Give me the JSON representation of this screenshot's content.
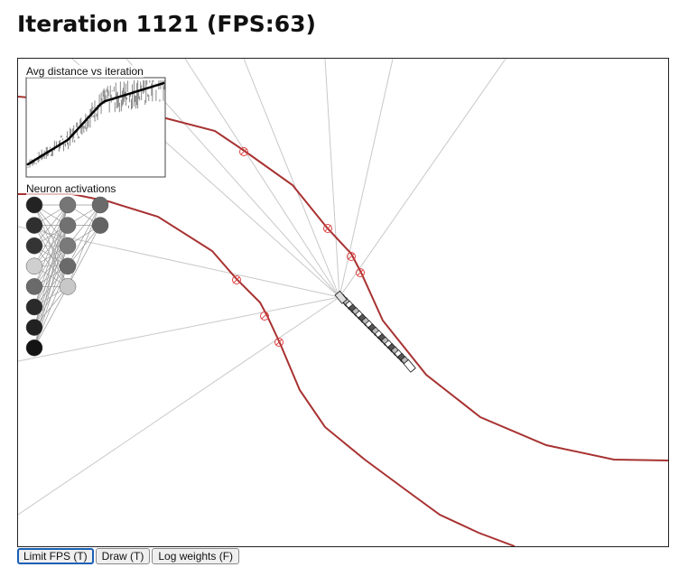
{
  "header": {
    "title": "Iteration 1121 (FPS:63)"
  },
  "panels": {
    "avg_distance_label": "Avg distance vs iteration",
    "neuron_label": "Neuron activations"
  },
  "neurons": {
    "layers": [
      [
        0.15,
        0.2,
        0.22,
        0.88,
        0.45,
        0.18,
        0.14,
        0.08
      ],
      [
        0.5,
        0.48,
        0.52,
        0.45,
        0.85
      ],
      [
        0.45,
        0.42
      ]
    ]
  },
  "colors": {
    "track": "#a83232",
    "ray": "#c8c8c8",
    "hit": "#e04040",
    "accent": "#1a5fb4"
  },
  "controls": {
    "limit_fps": "Limit FPS (T)",
    "draw": "Draw (T)",
    "log_weights": "Log weights (F)"
  }
}
